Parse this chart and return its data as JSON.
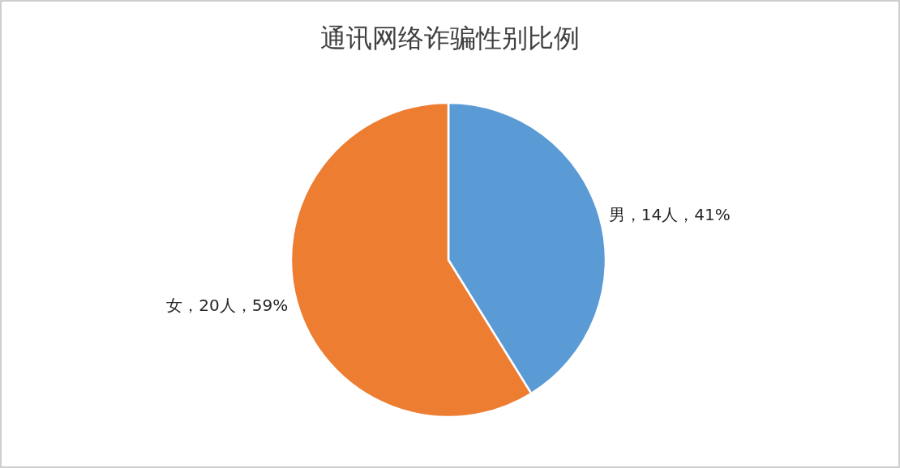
{
  "chart_data": {
    "type": "pie",
    "title": "通讯网络诈骗性别比例",
    "categories": [
      "男",
      "女"
    ],
    "values": [
      14,
      20
    ],
    "value_labels": [
      "14人，41%",
      "20人，59%"
    ],
    "colors": [
      "#5b9bd5",
      "#ed7d31"
    ]
  }
}
